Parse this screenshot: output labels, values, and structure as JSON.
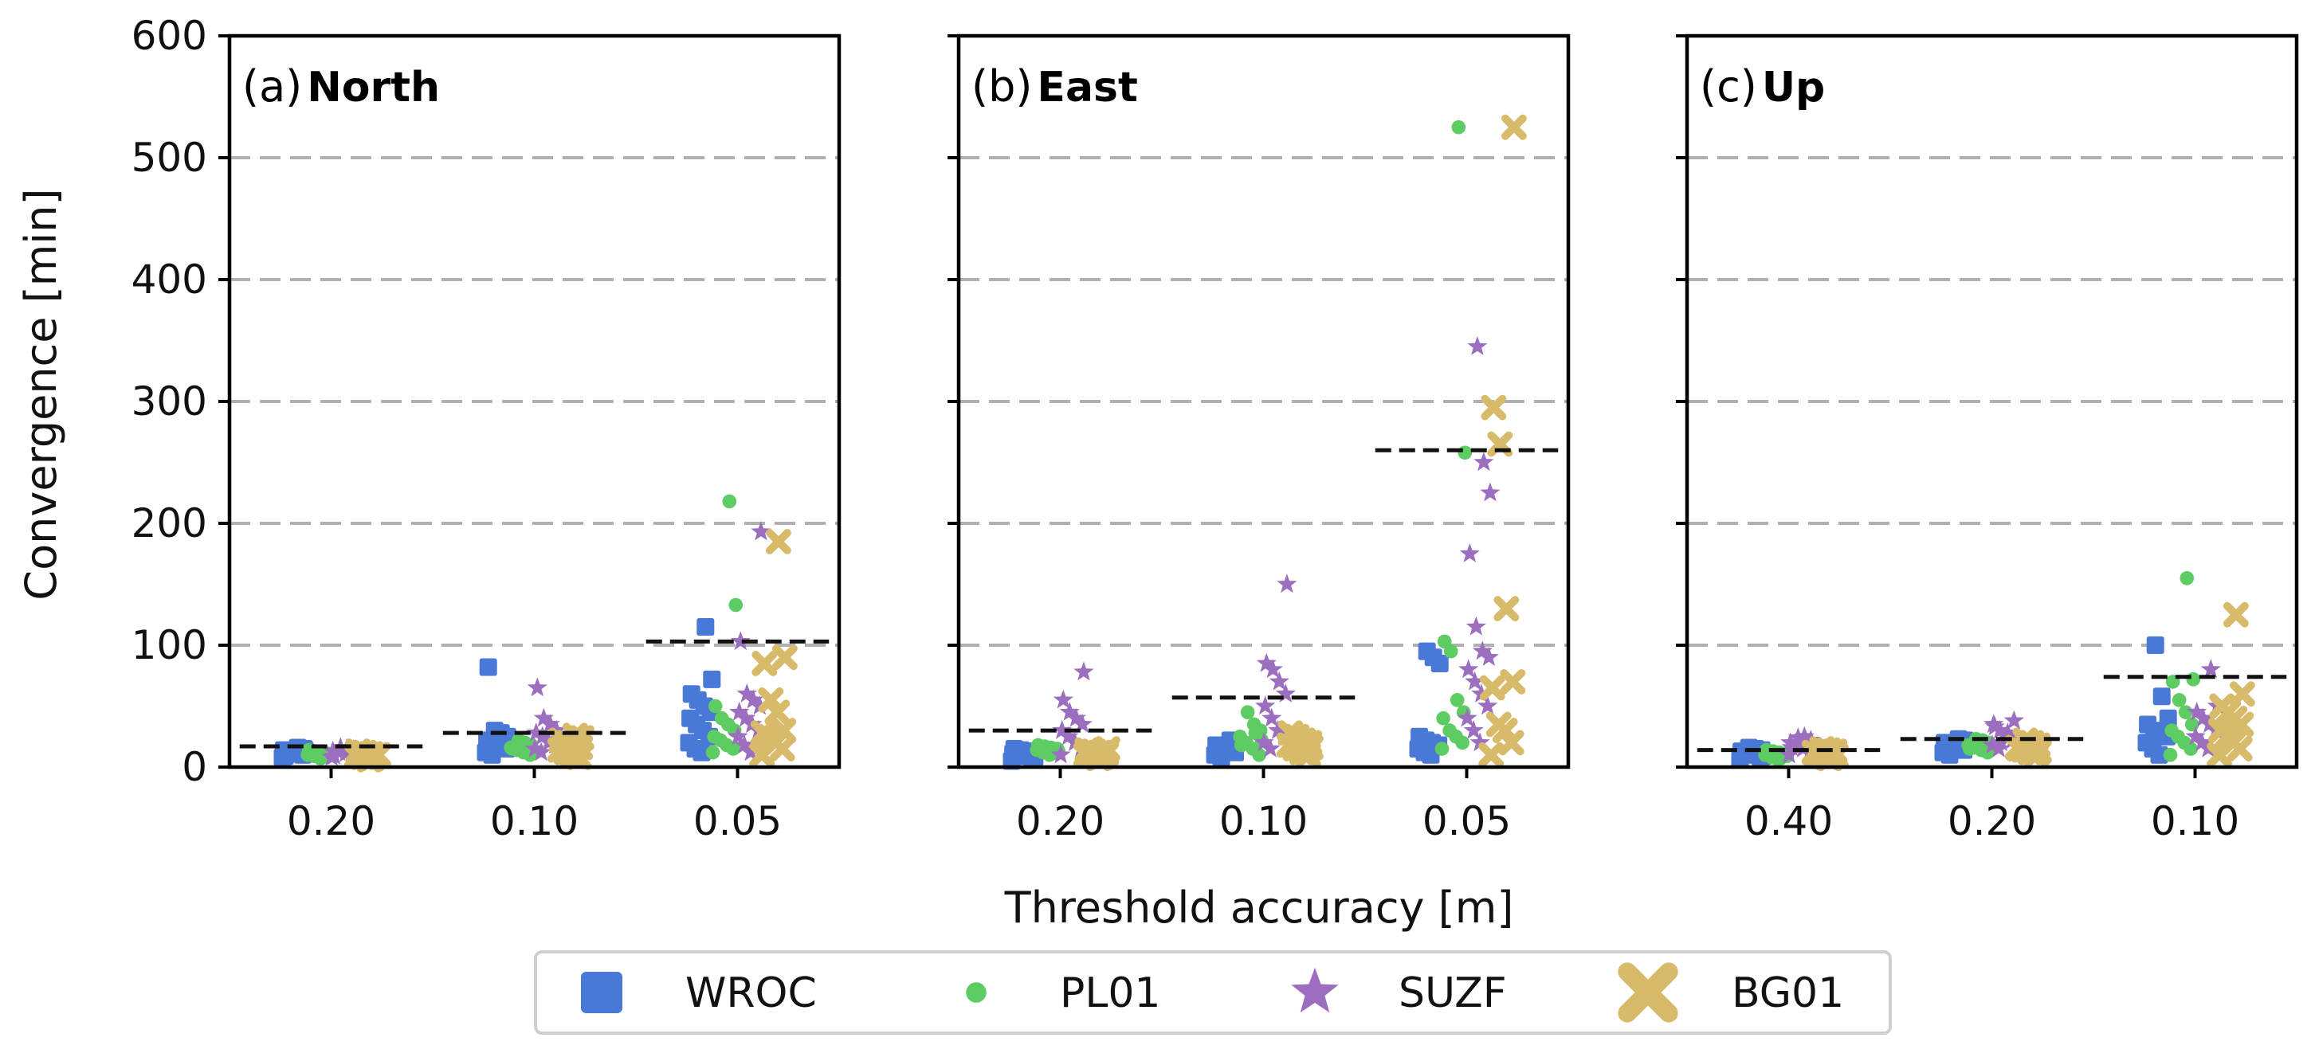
{
  "chart_data": {
    "type": "scatter",
    "ylabel": "Convergence [min]",
    "xlabel": "Threshold accuracy [m]",
    "ylim": [
      0,
      600
    ],
    "yticks": [
      "0",
      "100",
      "200",
      "300",
      "400",
      "500",
      "600"
    ],
    "grid": "horizontal dashed",
    "legend_position": "bottom-center",
    "series": [
      {
        "name": "WROC",
        "color": "#4a78d6",
        "marker": "square"
      },
      {
        "name": "PL01",
        "color": "#5ccc63",
        "marker": "circle"
      },
      {
        "name": "SUZF",
        "color": "#9b6ec0",
        "marker": "star"
      },
      {
        "name": "BG01",
        "color": "#d8bb6a",
        "marker": "x"
      }
    ],
    "panels": [
      {
        "letter": "(a)",
        "name": "North",
        "categories": [
          "0.20",
          "0.10",
          "0.05"
        ],
        "mean": [
          17,
          28,
          103
        ],
        "points": [
          [
            [
              8,
              10,
              12,
              13,
              14,
              15,
              16,
              11,
              9,
              13
            ],
            [
              7,
              9,
              10,
              11,
              12,
              13,
              14,
              10,
              8,
              11
            ],
            [
              8,
              10,
              11,
              12,
              13,
              14,
              15,
              16,
              9,
              12
            ],
            [
              6,
              8,
              9,
              10,
              11,
              12,
              13,
              10,
              7,
              11
            ]
          ],
          [
            [
              10,
              12,
              15,
              18,
              20,
              22,
              25,
              28,
              30,
              82
            ],
            [
              10,
              12,
              14,
              16,
              18,
              20,
              22,
              15,
              13,
              17
            ],
            [
              12,
              15,
              18,
              20,
              25,
              28,
              30,
              35,
              40,
              65
            ],
            [
              8,
              10,
              12,
              14,
              16,
              18,
              20,
              22,
              24,
              26
            ]
          ],
          [
            [
              12,
              15,
              20,
              25,
              30,
              35,
              40,
              45,
              50,
              55,
              60,
              72,
              115
            ],
            [
              12,
              15,
              18,
              22,
              25,
              30,
              35,
              40,
              50,
              133,
              218
            ],
            [
              12,
              18,
              25,
              30,
              35,
              40,
              45,
              50,
              55,
              60,
              103,
              193
            ],
            [
              10,
              15,
              20,
              25,
              28,
              30,
              45,
              55,
              85,
              90,
              185
            ]
          ]
        ]
      },
      {
        "letter": "(b)",
        "name": "East",
        "categories": [
          "0.20",
          "0.10",
          "0.05"
        ],
        "mean": [
          30,
          57,
          260
        ],
        "points": [
          [
            [
              5,
              7,
              9,
              10,
              11,
              12,
              13,
              14,
              15,
              8
            ],
            [
              10,
              12,
              14,
              15,
              16,
              17,
              18,
              13,
              11,
              15
            ],
            [
              10,
              15,
              20,
              25,
              30,
              35,
              40,
              45,
              55,
              78
            ],
            [
              7,
              9,
              10,
              11,
              12,
              13,
              14,
              15,
              8,
              12
            ]
          ],
          [
            [
              8,
              10,
              12,
              14,
              16,
              18,
              20,
              22,
              15,
              13
            ],
            [
              10,
              15,
              20,
              25,
              30,
              35,
              45,
              18,
              22,
              28
            ],
            [
              15,
              20,
              25,
              30,
              40,
              50,
              60,
              70,
              80,
              85,
              150
            ],
            [
              10,
              12,
              15,
              18,
              20,
              22,
              25,
              28,
              16,
              14
            ]
          ],
          [
            [
              10,
              12,
              15,
              18,
              20,
              22,
              25,
              85,
              90,
              95
            ],
            [
              15,
              20,
              25,
              30,
              40,
              45,
              55,
              95,
              103,
              258,
              525
            ],
            [
              20,
              30,
              40,
              50,
              60,
              70,
              80,
              90,
              95,
              115,
              175,
              225,
              250,
              345
            ],
            [
              10,
              20,
              30,
              35,
              65,
              70,
              130,
              265,
              295,
              525
            ]
          ]
        ]
      },
      {
        "letter": "(c)",
        "name": "Up",
        "categories": [
          "0.40",
          "0.20",
          "0.10"
        ],
        "mean": [
          14,
          23,
          74
        ],
        "points": [
          [
            [
              6,
              8,
              10,
              12,
              13,
              14,
              15,
              16,
              11,
              9
            ],
            [
              6,
              8,
              10,
              11,
              12,
              13,
              14,
              9,
              7,
              11
            ],
            [
              10,
              12,
              15,
              18,
              20,
              22,
              25,
              24,
              16,
              13
            ],
            [
              8,
              10,
              12,
              13,
              14,
              15,
              11,
              9,
              7,
              12
            ]
          ],
          [
            [
              10,
              12,
              14,
              16,
              18,
              20,
              22,
              23,
              15,
              13
            ],
            [
              12,
              14,
              16,
              18,
              20,
              22,
              23,
              15,
              17,
              19
            ],
            [
              15,
              18,
              22,
              25,
              30,
              35,
              38,
              28,
              20,
              33
            ],
            [
              10,
              12,
              14,
              16,
              18,
              20,
              22,
              15,
              13,
              17
            ]
          ],
          [
            [
              10,
              15,
              20,
              25,
              28,
              30,
              35,
              40,
              58,
              100
            ],
            [
              10,
              15,
              20,
              25,
              30,
              35,
              45,
              55,
              70,
              72,
              155
            ],
            [
              15,
              20,
              25,
              30,
              35,
              40,
              45,
              50,
              80
            ],
            [
              10,
              15,
              20,
              25,
              30,
              35,
              40,
              45,
              50,
              60,
              125
            ]
          ]
        ]
      }
    ]
  }
}
